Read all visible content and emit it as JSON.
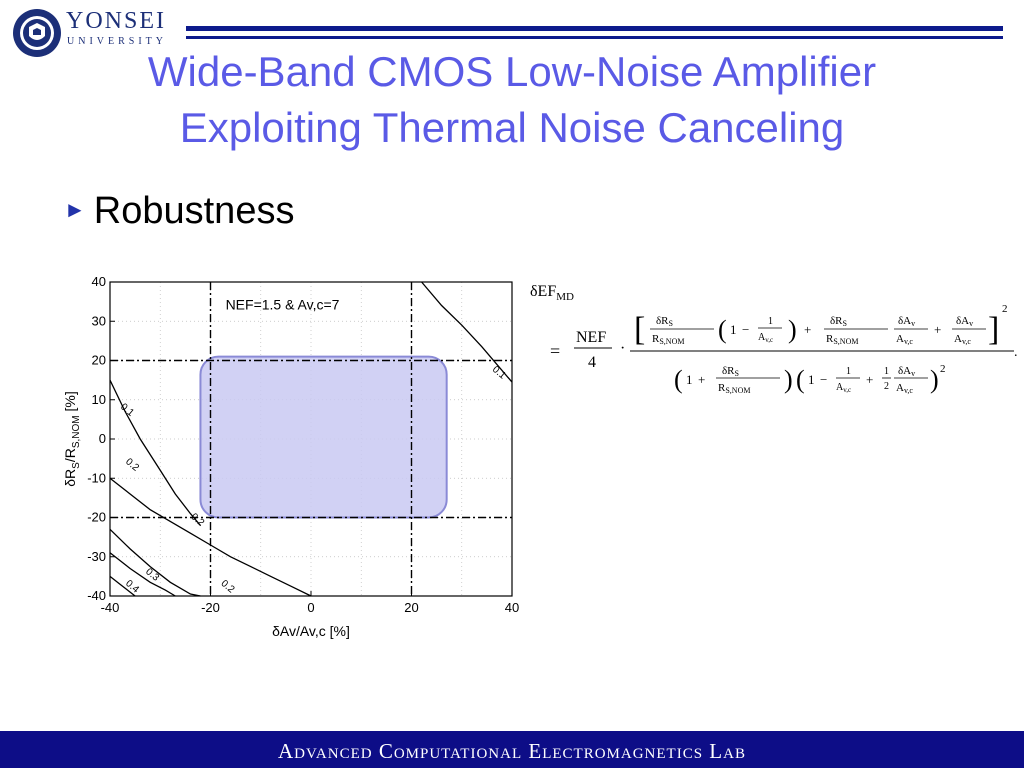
{
  "header": {
    "logo_name": "YONSEI",
    "logo_sub": "UNIVERSITY",
    "logo_seal_text": "YONSEI UNIVERSITY"
  },
  "slide": {
    "title_line1": "Wide-Band CMOS Low-Noise Amplifier",
    "title_line2": "Exploiting Thermal Noise Canceling",
    "bullet": "Robustness"
  },
  "chart_data": {
    "type": "line",
    "annotation": "NEF=1.5 & Av,c=7",
    "xlabel": "δAv/Av,c  [%]",
    "ylabel_main": "δR",
    "ylabel_sub1": "S",
    "ylabel_mid": "/R",
    "ylabel_sub2": "S,NOM",
    "ylabel_unit": "  [%]",
    "xlim": [
      -40,
      40
    ],
    "ylim": [
      -40,
      40
    ],
    "x_ticks": [
      "-40",
      "-20",
      "0",
      "20",
      "40"
    ],
    "y_ticks": [
      "40",
      "30",
      "20",
      "10",
      "0",
      "-10",
      "-20",
      "-30",
      "-40"
    ],
    "grid": true,
    "boundary_lines": {
      "x": [
        -20,
        20
      ],
      "y": [
        -20,
        20
      ]
    },
    "highlight_region": {
      "x": [
        -22,
        27
      ],
      "y": [
        -20,
        21
      ]
    },
    "series": [
      {
        "name": "0.1",
        "x": [
          22,
          26,
          30,
          34,
          37,
          40
        ],
        "y": [
          40,
          34,
          29,
          23.5,
          19,
          14.5
        ]
      },
      {
        "name": "-0.1",
        "x": [
          -40,
          -37,
          -34,
          -30,
          -27,
          -24,
          -22
        ],
        "y": [
          15,
          7,
          0,
          -8,
          -14,
          -19,
          -22
        ]
      },
      {
        "name": "-0.2",
        "x": [
          -40,
          -36,
          -32,
          -28,
          -24,
          -20,
          -16,
          -12,
          -8,
          -4,
          0
        ],
        "y": [
          -10,
          -14,
          -18,
          -21,
          -24,
          -27,
          -30,
          -32.5,
          -35,
          -37.5,
          -40
        ]
      },
      {
        "name": "0.2",
        "x": [
          -40,
          -36,
          -32,
          -28,
          -24,
          -22
        ],
        "y": [
          -23,
          -28,
          -32.5,
          -36.5,
          -39.5,
          -40
        ]
      },
      {
        "name": "0.3",
        "x": [
          -40,
          -36,
          -32,
          -29,
          -27
        ],
        "y": [
          -29,
          -33,
          -36.5,
          -38.5,
          -40
        ]
      },
      {
        "name": "0.4",
        "x": [
          -40,
          -38,
          -36,
          -35
        ],
        "y": [
          -35,
          -37,
          -39,
          -40
        ]
      }
    ],
    "curve_labels": [
      {
        "text": "0.1",
        "x": 36,
        "y": 17.5
      },
      {
        "text": "0.1",
        "x": -38,
        "y": 8
      },
      {
        "text": "0.2",
        "x": -37,
        "y": -6
      },
      {
        "text": "0.2",
        "x": -24,
        "y": -20
      },
      {
        "text": "0.2",
        "x": -18,
        "y": -37
      },
      {
        "text": "0.3",
        "x": -33,
        "y": -34
      },
      {
        "text": "0.4",
        "x": -37,
        "y": -37
      }
    ]
  },
  "formula": {
    "lhs": "δEF",
    "lhs_sub": "MD",
    "eq": "=",
    "nef": "NEF",
    "four": "4",
    "dot": "·",
    "dRs": "δR",
    "S": "S",
    "Rs": "R",
    "SNOM": "S,NOM",
    "one": "1",
    "minus": "−",
    "plus": "+",
    "Av": "A",
    "vc": "v,c",
    "dAv": "δA",
    "v": "v",
    "half_num": "1",
    "half_den": "2",
    "sq": "2",
    "period": "."
  },
  "footer": {
    "text": "Advanced Computational Electromagnetics Lab"
  },
  "colors": {
    "title": "#5a5ae6",
    "footer_bg": "#0d0d87",
    "rule": "#0d1a8c",
    "highlight_fill": "#c9c9f2",
    "highlight_stroke": "#8a8ad6"
  }
}
